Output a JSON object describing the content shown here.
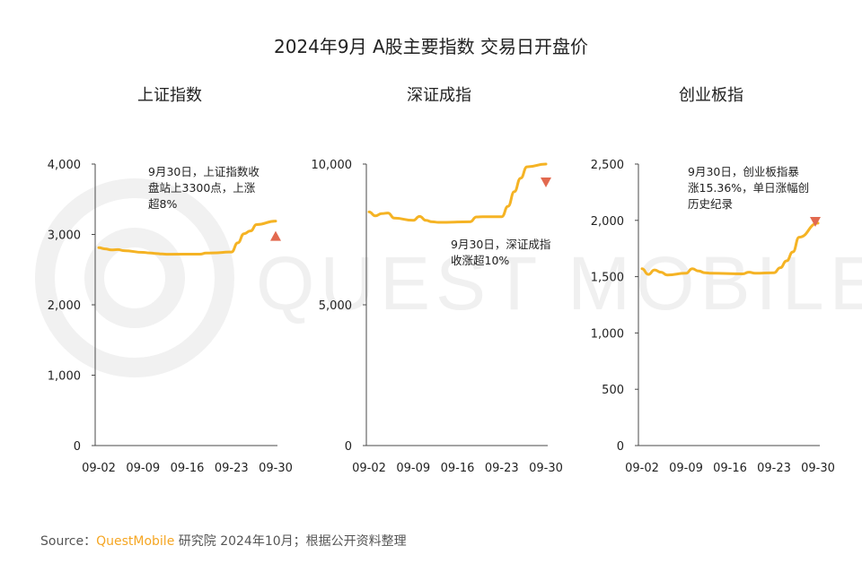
{
  "title": "2024年9月 A股主要指数 交易日开盘价",
  "watermark": "QUEST MOBILE",
  "source": {
    "prefix": "Source：",
    "brand": "QuestMobile",
    "rest": " 研究院 2024年10月；根据公开资料整理"
  },
  "colors": {
    "line": "#f5b324",
    "marker": "#e2694f",
    "axis": "#4a4a4a",
    "watermark": "#efefef"
  },
  "chart_data": [
    {
      "type": "line",
      "title": "上证指数",
      "x": [
        "09-02",
        "09-03",
        "09-04",
        "09-05",
        "09-06",
        "09-09",
        "09-10",
        "09-11",
        "09-12",
        "09-13",
        "09-18",
        "09-19",
        "09-20",
        "09-23",
        "09-24",
        "09-25",
        "09-26",
        "09-27",
        "09-30"
      ],
      "xticks": [
        "09-02",
        "09-09",
        "09-16",
        "09-23",
        "09-30"
      ],
      "values": [
        2811,
        2795,
        2780,
        2785,
        2770,
        2745,
        2738,
        2730,
        2722,
        2718,
        2720,
        2735,
        2738,
        2750,
        2880,
        3010,
        3050,
        3140,
        3190
      ],
      "ylim": [
        0,
        4000
      ],
      "yticks": [
        "0",
        "1,000",
        "2,000",
        "3,000",
        "4,000"
      ],
      "annotation": [
        "9月30日，上证指数收",
        "盘站上3300点，上涨",
        "超8%"
      ],
      "marker": "up"
    },
    {
      "type": "line",
      "title": "深证成指",
      "x": [
        "09-02",
        "09-03",
        "09-04",
        "09-05",
        "09-06",
        "09-09",
        "09-10",
        "09-11",
        "09-12",
        "09-13",
        "09-18",
        "09-19",
        "09-20",
        "09-23",
        "09-24",
        "09-25",
        "09-26",
        "09-27",
        "09-30"
      ],
      "xticks": [
        "09-02",
        "09-09",
        "09-16",
        "09-23",
        "09-30"
      ],
      "values": [
        8300,
        8160,
        8240,
        8260,
        8080,
        8000,
        8140,
        8000,
        7950,
        7930,
        7950,
        8120,
        8130,
        8130,
        8500,
        9020,
        9500,
        9900,
        10000
      ],
      "ylim": [
        0,
        10000
      ],
      "yticks": [
        "0",
        "5,000",
        "10,000"
      ],
      "annotation": [
        "9月30日，深证成指",
        "收涨超10%"
      ],
      "marker": "down"
    },
    {
      "type": "line",
      "title": "创业板指",
      "x": [
        "09-02",
        "09-03",
        "09-04",
        "09-05",
        "09-06",
        "09-09",
        "09-10",
        "09-11",
        "09-12",
        "09-13",
        "09-18",
        "09-19",
        "09-20",
        "09-23",
        "09-24",
        "09-25",
        "09-26",
        "09-27",
        "09-30"
      ],
      "xticks": [
        "09-02",
        "09-09",
        "09-16",
        "09-23",
        "09-30"
      ],
      "values": [
        1570,
        1520,
        1560,
        1540,
        1515,
        1530,
        1570,
        1550,
        1535,
        1530,
        1525,
        1540,
        1530,
        1535,
        1580,
        1640,
        1720,
        1850,
        1975
      ],
      "ylim": [
        0,
        2500
      ],
      "yticks": [
        "0",
        "500",
        "1,000",
        "1,500",
        "2,000",
        "2,500"
      ],
      "annotation": [
        "9月30日，创业板指暴",
        "涨15.36%，单日涨幅创",
        "历史纪录"
      ],
      "marker": "down"
    }
  ]
}
